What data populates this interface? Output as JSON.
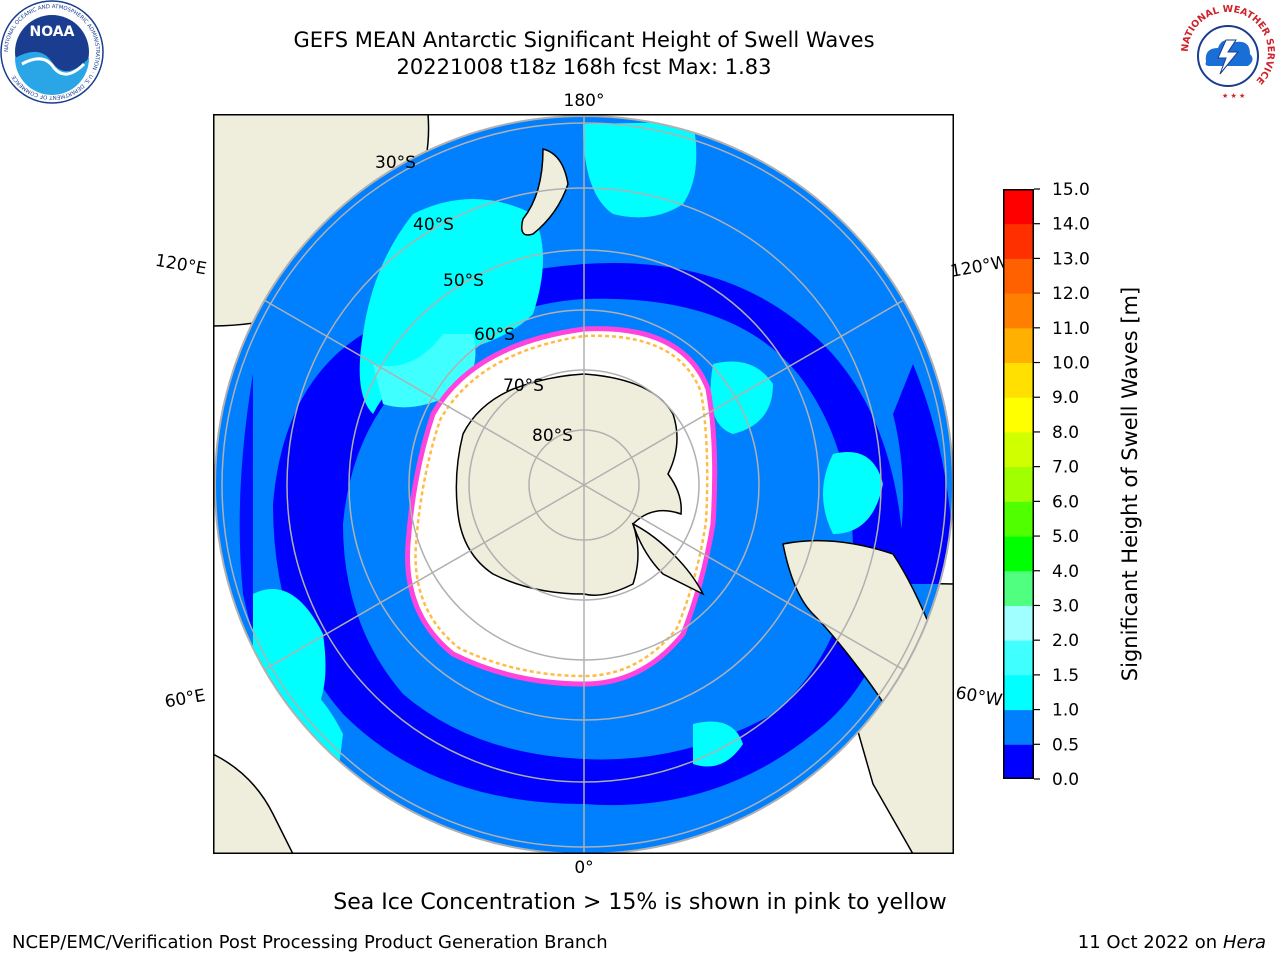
{
  "title": {
    "line1": "GEFS MEAN Antarctic Significant Height of Swell Waves",
    "line2": "20221008 t18z 168h fcst   Max: 1.83"
  },
  "logos": {
    "left_text": "NOAA",
    "left_ring_text": "NATIONAL OCEANIC AND ATMOSPHERIC ADMINISTRATION · U.S. DEPARTMENT OF COMMERCE",
    "right_ring_text": "NATIONAL WEATHER SERVICE"
  },
  "map": {
    "longitude_labels": {
      "top": "180°",
      "bottom": "0°",
      "upper_left": "120°E",
      "upper_right": "120°W",
      "lower_left": "60°E",
      "lower_right": "60°W"
    },
    "latitude_labels": [
      "30°S",
      "40°S",
      "50°S",
      "60°S",
      "70°S",
      "80°S"
    ],
    "colors": {
      "land": "#efeedd",
      "ocean_0_0_5": "#0000ff",
      "ocean_0_5_1_0": "#0080ff",
      "ocean_1_0_1_5": "#00ffff",
      "ocean_1_5_2_0": "#40ffff",
      "sea_ice": "#ffffff",
      "ice_edge_pink": "#ff44dd",
      "ice_edge_yellow": "#ffbb44",
      "graticule": "#b0b0b0"
    }
  },
  "colorbar": {
    "title": "Significant Height of Swell Waves [m]",
    "ticks": [
      "0.0",
      "0.5",
      "1.0",
      "1.5",
      "2.0",
      "3.0",
      "4.0",
      "5.0",
      "6.0",
      "7.0",
      "8.0",
      "9.0",
      "10.0",
      "11.0",
      "12.0",
      "13.0",
      "14.0",
      "15.0"
    ],
    "colors": [
      "#0000ff",
      "#0080ff",
      "#00ffff",
      "#40ffff",
      "#a0ffff",
      "#50ff80",
      "#00ff00",
      "#50ff00",
      "#a0ff00",
      "#d0ff00",
      "#ffff00",
      "#ffe000",
      "#ffb000",
      "#ff8000",
      "#ff6000",
      "#ff3000",
      "#ff0000"
    ]
  },
  "note": "Sea Ice Concentration > 15% is shown in pink to yellow",
  "footer": {
    "left": "NCEP/EMC/Verification Post Processing Product Generation Branch",
    "right_date": "11 Oct 2022 on ",
    "right_host": "Hera"
  }
}
